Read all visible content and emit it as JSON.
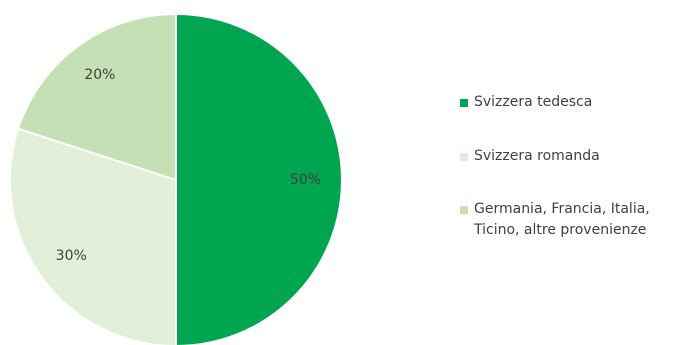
{
  "chart_data": {
    "type": "pie",
    "title": "",
    "start_angle_deg": 0,
    "direction": "clockwise",
    "slices": [
      {
        "label": "Svizzera tedesca",
        "value": 50,
        "display": "50%",
        "color": "#00a550"
      },
      {
        "label": "Svizzera romanda",
        "value": 30,
        "display": "30%",
        "color": "#e2efd9"
      },
      {
        "label": "Germania, Francia, Italia, Ticino, altre provenienze",
        "value": 20,
        "display": "20%",
        "color": "#c5e0b4"
      }
    ],
    "legend": {
      "placement": "right",
      "items": [
        {
          "lines": [
            "Svizzera tedesca"
          ],
          "color": "#00a550"
        },
        {
          "lines": [
            "Svizzera romanda"
          ],
          "color": "#e2efd9"
        },
        {
          "lines": [
            "Germania, Francia, Italia,",
            "Ticino, altre provenienze"
          ],
          "color": "#c5e0b4"
        }
      ]
    }
  }
}
